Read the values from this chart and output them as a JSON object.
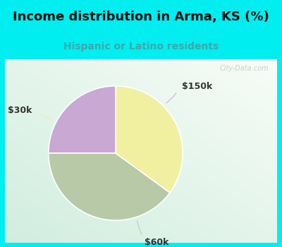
{
  "title": "Income distribution in Arma, KS (%)",
  "subtitle": "Hispanic or Latino residents",
  "title_color": "#111111",
  "subtitle_color": "#3aaaaa",
  "title_fontsize": 13,
  "subtitle_fontsize": 10,
  "bg_cyan": "#00eef0",
  "slices": [
    {
      "label": "$150k",
      "value": 25,
      "color": "#c9a8d4"
    },
    {
      "label": "$60k",
      "value": 40,
      "color": "#b8c9a8"
    },
    {
      "label": "$30k",
      "value": 35,
      "color": "#f0f0a0"
    }
  ],
  "label_color": "#333333",
  "label_fontsize": 9,
  "startangle": 90,
  "watermark": "City-Data.com",
  "watermark_color": "#bbcccc"
}
